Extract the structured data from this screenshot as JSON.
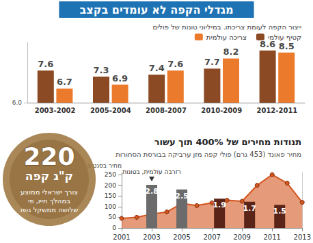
{
  "chart_data": [
    {
      "type": "bar",
      "title": "מגדלי הקפה לא עומדים בקצב",
      "subtitle": "ייצור הקפה לעומת צריכתו. במיליוני טונות של פולים",
      "categories": [
        "2003-2002",
        "2005-2004",
        "2008-2007",
        "2010-2009",
        "2012-2011"
      ],
      "series": [
        {
          "name": "קטיף עולמי",
          "color": "#8b4a23",
          "values": [
            7.6,
            7.3,
            7.4,
            7.7,
            8.6
          ]
        },
        {
          "name": "צריכה עולמית",
          "color": "#ec7a2c",
          "values": [
            6.7,
            6.9,
            7.6,
            8.2,
            8.5
          ]
        }
      ],
      "ylim": [
        6,
        9
      ],
      "yticks": [
        {
          "value": 6,
          "label": "6.0"
        }
      ],
      "grid": false,
      "legend": "top-right",
      "data_labels": true
    },
    {
      "type": "line",
      "title": "תנודות מחירים של 400% תוך עשור",
      "subtitle": "מחיר פאונד (453 גרם) פולי קפה מזן ערביקה בבורסת הסחורות",
      "y_label": "מחיר בסנטים",
      "x": [
        2001,
        2002,
        2003,
        2004,
        2005,
        2006,
        2007,
        2008,
        2009,
        2010,
        2011,
        2012,
        2013
      ],
      "xlim": [
        2001,
        2013
      ],
      "xticks": [
        2001,
        2003,
        2005,
        2007,
        2009,
        2011,
        2013
      ],
      "ylim": [
        0,
        260
      ],
      "yticks": [
        0,
        50,
        100,
        150,
        200,
        250
      ],
      "y2lim": [
        0,
        3.6
      ],
      "grid": false,
      "series": [
        {
          "type": "area",
          "color": "#d4561f",
          "marker": "circle",
          "values": [
            45,
            50,
            65,
            75,
            115,
            105,
            118,
            130,
            125,
            200,
            250,
            210,
            120
          ]
        },
        {
          "type": "bar",
          "axis": "y2",
          "name": "רזרבה עולמית, בטונות",
          "x": [
            2003,
            2005,
            2007.5,
            2009.5,
            2011.5
          ],
          "values": [
            2.8,
            2.5,
            1.9,
            1.7,
            1.5
          ],
          "colors": [
            "#6b6b6b",
            "#6b6b6b",
            "#5a2418",
            "#5a2418",
            "#5a2418"
          ],
          "data_labels": true
        }
      ]
    }
  ],
  "annotation": {
    "value": 220,
    "unit": "ק\"ג קפה",
    "text_lines": [
      "צורך ישראלי ממוצע",
      "במהלך חייו, פי",
      "שלושה ממשקל גופו"
    ]
  }
}
